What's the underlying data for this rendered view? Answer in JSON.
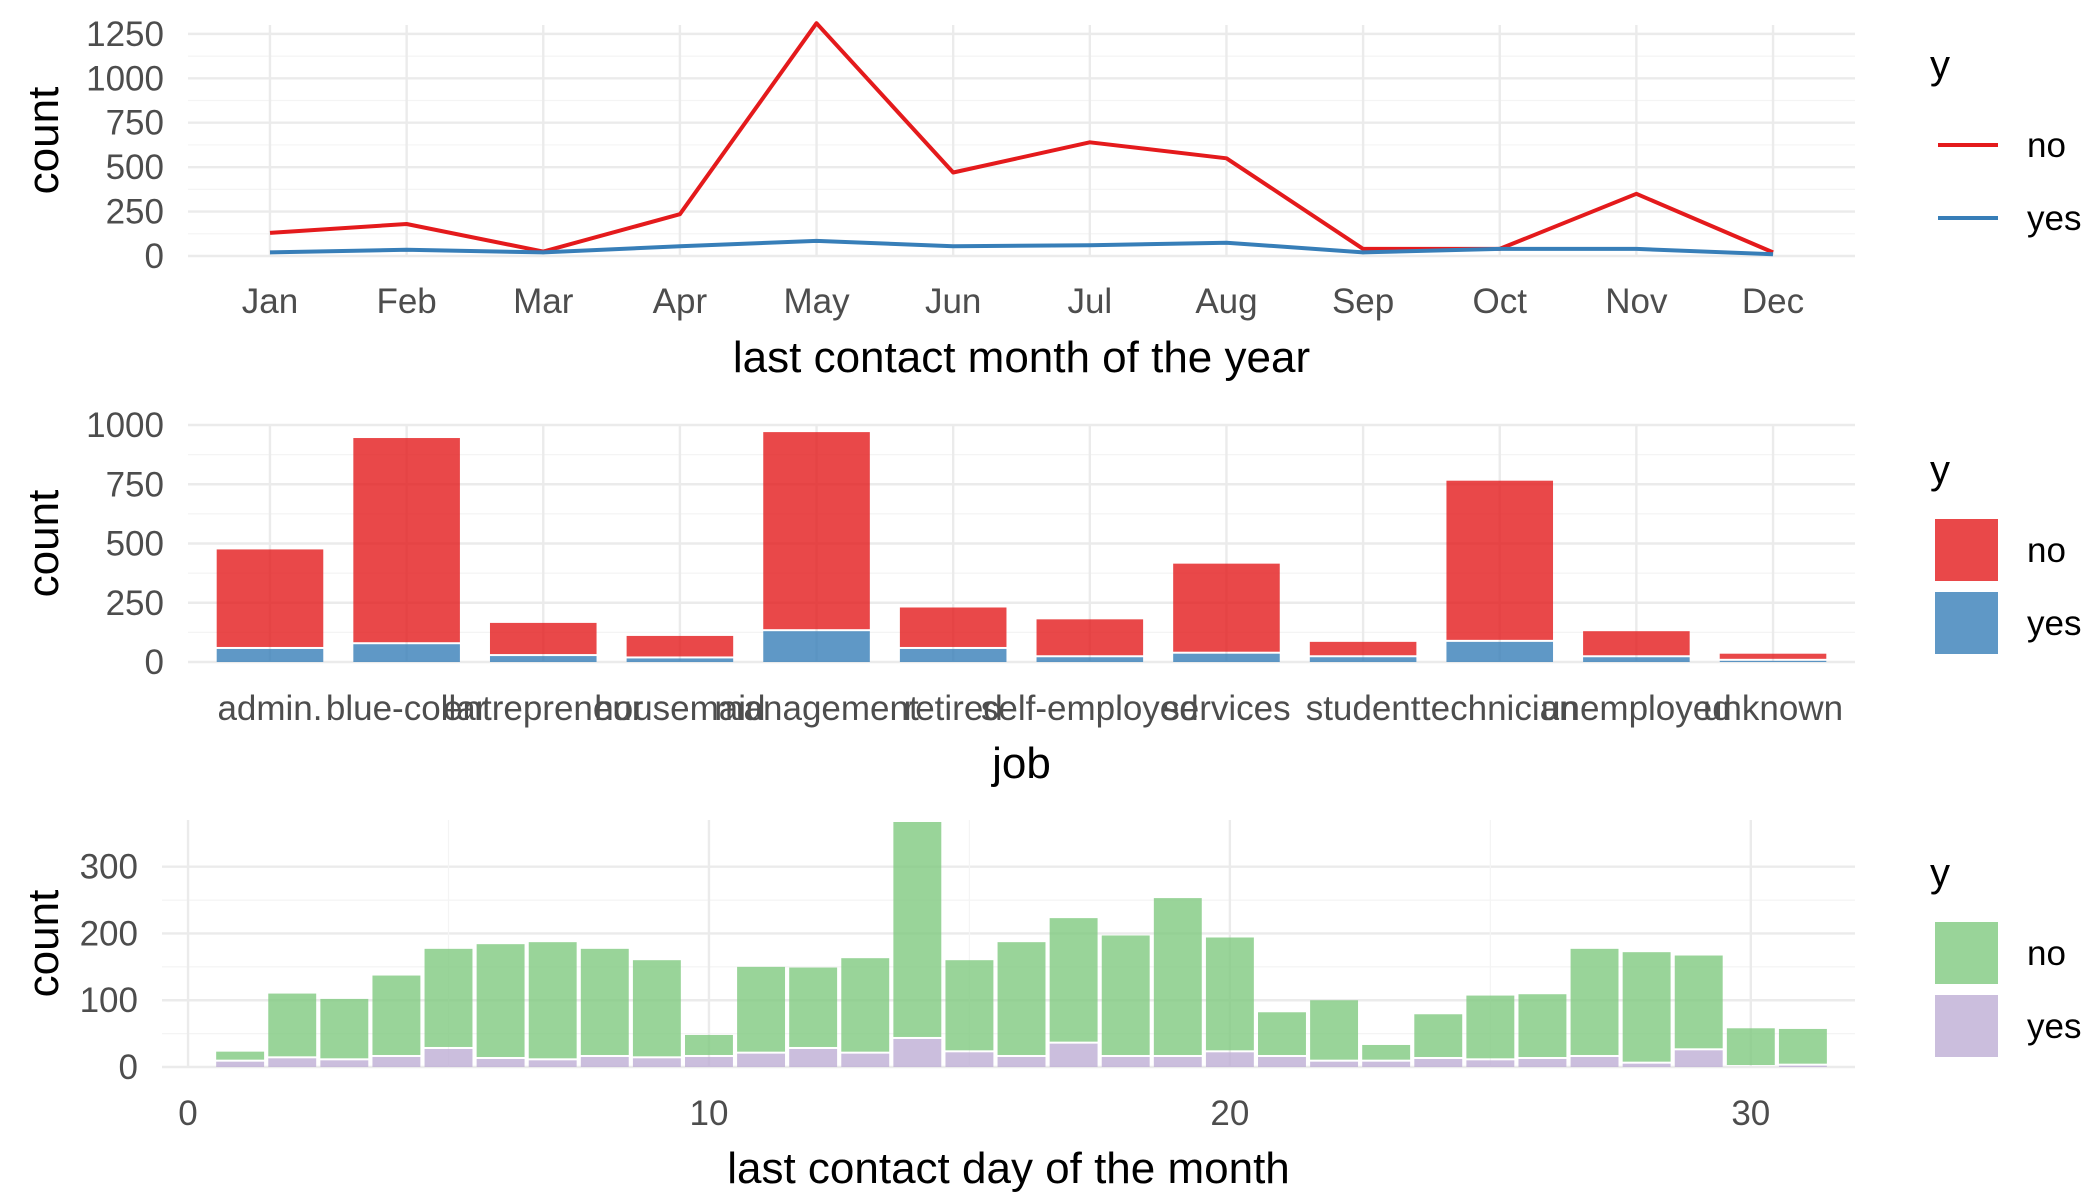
{
  "chart_data": [
    {
      "type": "line",
      "xlabel": "last contact month of the year",
      "ylabel": "count",
      "ylim": [
        0,
        1300
      ],
      "yticks": [
        0,
        250,
        500,
        750,
        1000,
        1250
      ],
      "categories": [
        "Jan",
        "Feb",
        "Mar",
        "Apr",
        "May",
        "Jun",
        "Jul",
        "Aug",
        "Sep",
        "Oct",
        "Nov",
        "Dec"
      ],
      "series": [
        {
          "name": "no",
          "color": "#E41A1C",
          "values": [
            130,
            180,
            25,
            235,
            1310,
            470,
            640,
            550,
            40,
            40,
            350,
            20
          ]
        },
        {
          "name": "yes",
          "color": "#377EB8",
          "values": [
            20,
            35,
            20,
            55,
            85,
            55,
            60,
            75,
            20,
            40,
            40,
            10
          ]
        }
      ],
      "legend": {
        "title": "y",
        "position": "right"
      },
      "grid": true
    },
    {
      "type": "bar",
      "stacked": true,
      "xlabel": "job",
      "ylabel": "count",
      "ylim": [
        0,
        1000
      ],
      "yticks": [
        0,
        250,
        500,
        750,
        1000
      ],
      "categories": [
        "admin.",
        "blue-collar",
        "entrepreneur",
        "housemaid",
        "management",
        "retired",
        "self-employed",
        "services",
        "student",
        "technician",
        "unemployed",
        "unknown"
      ],
      "series": [
        {
          "name": "no",
          "color": "#E41A1C",
          "values": [
            420,
            870,
            140,
            95,
            840,
            175,
            160,
            380,
            65,
            680,
            110,
            30
          ]
        },
        {
          "name": "yes",
          "color": "#377EB8",
          "values": [
            55,
            75,
            25,
            15,
            130,
            55,
            20,
            35,
            20,
            85,
            20,
            5
          ]
        }
      ],
      "legend": {
        "title": "y",
        "position": "right"
      },
      "grid": true
    },
    {
      "type": "bar",
      "stacked": true,
      "xlabel": "last contact day of the month",
      "ylabel": "count",
      "xlim": [
        -0.5,
        32
      ],
      "ylim": [
        0,
        370
      ],
      "xticks": [
        0,
        10,
        20,
        30
      ],
      "yticks": [
        0,
        100,
        200,
        300
      ],
      "x": [
        1,
        2,
        3,
        4,
        5,
        6,
        7,
        8,
        9,
        10,
        11,
        12,
        13,
        14,
        15,
        16,
        17,
        18,
        19,
        20,
        21,
        22,
        23,
        24,
        25,
        26,
        27,
        28,
        29,
        30,
        31
      ],
      "series": [
        {
          "name": "no",
          "color": "#7FC97F",
          "values": [
            15,
            97,
            92,
            122,
            150,
            172,
            177,
            162,
            147,
            33,
            130,
            122,
            143,
            325,
            138,
            172,
            188,
            182,
            238,
            172,
            67,
            92,
            25,
            67,
            97,
            97,
            162,
            167,
            142,
            58,
            55
          ]
        },
        {
          "name": "yes",
          "color": "#BEAED4",
          "values": [
            8,
            13,
            10,
            15,
            27,
            12,
            10,
            15,
            13,
            15,
            20,
            27,
            20,
            42,
            22,
            15,
            35,
            15,
            15,
            22,
            15,
            8,
            8,
            12,
            10,
            12,
            15,
            5,
            25,
            0,
            2
          ]
        }
      ],
      "legend": {
        "title": "y",
        "position": "right"
      },
      "grid": true
    }
  ]
}
